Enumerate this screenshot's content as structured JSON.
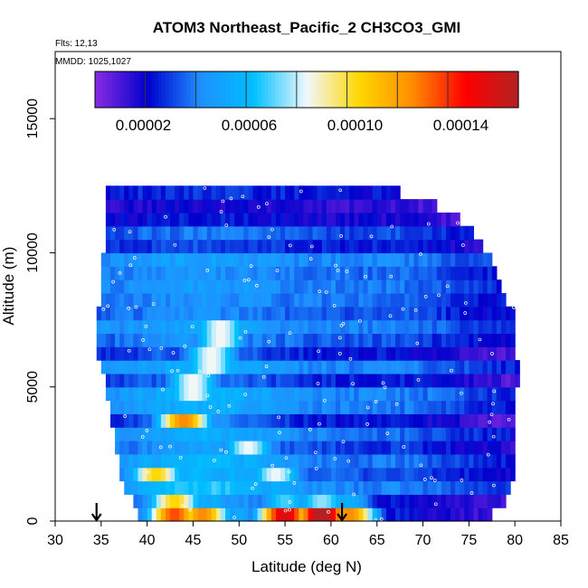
{
  "chart_data": {
    "type": "heatmap",
    "title": "ATOM3 Northeast_Pacific_2 CH3CO3_GMI",
    "annotations": [
      "Flts: 12,13",
      "MMDD: 1025,1027"
    ],
    "xlabel": "Latitude (deg N)",
    "ylabel": "Altitude (m)",
    "xlim": [
      30,
      85
    ],
    "ylim": [
      0,
      17500
    ],
    "x_ticks": [
      "30",
      "35",
      "40",
      "45",
      "50",
      "55",
      "60",
      "65",
      "70",
      "75",
      "80",
      "85"
    ],
    "y_ticks": [
      "0",
      "5000",
      "10000",
      "15000"
    ],
    "colorbar": {
      "range": [
        0,
        0.00016
      ],
      "tick_labels": [
        "0.00002",
        "0.00006",
        "0.00010",
        "0.00014"
      ],
      "tick_values": [
        2e-05,
        6e-05,
        0.0001,
        0.00014
      ],
      "colors": [
        "#8a2be2",
        "#0000cd",
        "#1e90ff",
        "#00bfff",
        "#f0f8ff",
        "#ffd700",
        "#ff8c00",
        "#ff0000",
        "#b22222"
      ]
    },
    "markers": [
      {
        "name": "down-arrow",
        "x": 34.5
      },
      {
        "name": "down-arrow",
        "x": 61.2
      }
    ],
    "coverage": {
      "altitude_bins": [
        0,
        500,
        1000,
        1500,
        2000,
        2500,
        3000,
        3500,
        4000,
        4500,
        5000,
        5500,
        6000,
        6500,
        7000,
        7500,
        8000,
        8500,
        9000,
        9500,
        10000,
        10500,
        11000,
        11500,
        12000
      ],
      "lat_min": [
        39,
        38.5,
        37.5,
        37,
        37,
        36.5,
        36.5,
        36,
        36,
        35.5,
        35.5,
        35,
        34.5,
        34.5,
        34.5,
        34.5,
        35,
        35,
        35,
        35,
        35.5,
        35.5,
        35.5,
        35.5,
        35.5
      ],
      "lat_max": [
        77.5,
        79,
        79.5,
        80,
        80,
        80,
        80,
        80,
        80,
        80,
        80.5,
        80.5,
        80,
        80,
        80,
        80,
        79,
        78.5,
        78,
        77.5,
        76.5,
        75.5,
        74,
        71.5,
        67.5
      ]
    },
    "hotspots": [
      {
        "lat": 59,
        "alt": 250,
        "value": 0.000165
      },
      {
        "lat": 55,
        "alt": 250,
        "value": 0.00015
      },
      {
        "lat": 62,
        "alt": 250,
        "value": 0.00012
      },
      {
        "lat": 43,
        "alt": 250,
        "value": 0.00013
      },
      {
        "lat": 46,
        "alt": 250,
        "value": 0.00012
      },
      {
        "lat": 43,
        "alt": 750,
        "value": 0.0001
      },
      {
        "lat": 41,
        "alt": 1750,
        "value": 0.0001
      },
      {
        "lat": 44,
        "alt": 3750,
        "value": 0.00012
      },
      {
        "lat": 45,
        "alt": 5000,
        "value": 0.0001
      },
      {
        "lat": 47,
        "alt": 6000,
        "value": 0.0001
      },
      {
        "lat": 48,
        "alt": 7000,
        "value": 0.0001
      },
      {
        "lat": 51,
        "alt": 2750,
        "value": 8e-05
      },
      {
        "lat": 54,
        "alt": 1750,
        "value": 8e-05
      }
    ]
  }
}
